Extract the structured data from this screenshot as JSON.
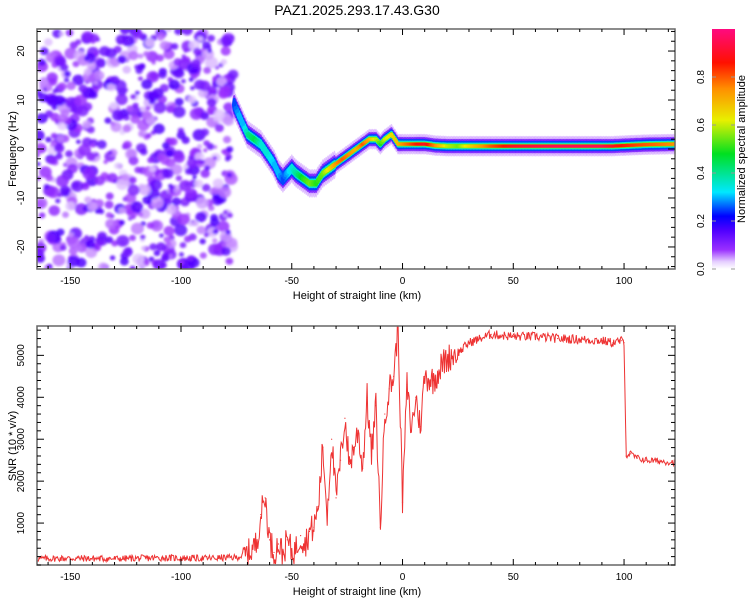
{
  "page_title": "PAZ1.2025.293.17.43.G30",
  "chart_data": [
    {
      "type": "heatmap",
      "title": "PAZ1.2025.293.17.43.G30",
      "xlabel": "Height of straight line (km)",
      "ylabel": "Frequency (Hz)",
      "xlim": [
        -165,
        123
      ],
      "ylim": [
        -24.5,
        24.5
      ],
      "xticks": [
        -150,
        -100,
        -50,
        0,
        50,
        100
      ],
      "yticks": [
        -20,
        -10,
        0,
        10,
        20
      ],
      "colorbar": {
        "label": "Normalized spectral amplitude",
        "range": [
          0,
          1
        ],
        "ticks": [
          "0.0",
          "0.2",
          "0.4",
          "0.6",
          "0.8"
        ],
        "colors": [
          "#ffffff",
          "#e6d0ff",
          "#8a00ff",
          "#0000ff",
          "#00e0ff",
          "#00e000",
          "#e0f000",
          "#ff9000",
          "#ff0000",
          "#ff0080"
        ]
      },
      "noise_region": {
        "x_from": -165,
        "x_to": -76,
        "amplitude": 0.15
      },
      "ridge": {
        "x": [
          -76,
          -74,
          -72,
          -70,
          -67,
          -64,
          -61,
          -58,
          -56,
          -54,
          -52,
          -50,
          -48,
          -45,
          -42,
          -39,
          -36,
          -33,
          -30,
          -27,
          -24,
          -21,
          -18,
          -15,
          -12,
          -10,
          -8,
          -5,
          -2,
          0,
          3,
          6,
          10,
          15,
          20,
          25,
          30,
          40,
          50,
          60,
          70,
          80,
          90,
          95,
          100,
          110,
          123
        ],
        "y": [
          9,
          7,
          5,
          3,
          2,
          1,
          -1,
          -3,
          -5,
          -6,
          -5,
          -4,
          -5,
          -6,
          -7,
          -7,
          -5,
          -4,
          -3,
          -2,
          -1,
          0,
          1,
          2,
          2,
          1,
          2,
          3,
          1,
          1,
          1,
          1,
          1,
          0.7,
          0.6,
          0.6,
          0.6,
          0.6,
          0.6,
          0.6,
          0.6,
          0.6,
          0.6,
          0.6,
          0.7,
          0.9,
          1
        ],
        "amplitude": [
          0.25,
          0.3,
          0.3,
          0.4,
          0.45,
          0.35,
          0.35,
          0.3,
          0.3,
          0.25,
          0.3,
          0.35,
          0.4,
          0.5,
          0.55,
          0.5,
          0.55,
          0.65,
          0.75,
          0.8,
          0.75,
          0.7,
          0.8,
          0.7,
          0.6,
          0.5,
          0.6,
          0.65,
          0.7,
          0.75,
          0.8,
          0.85,
          0.9,
          0.75,
          0.6,
          0.55,
          0.65,
          0.8,
          0.9,
          0.93,
          0.95,
          0.95,
          0.95,
          0.9,
          0.85,
          0.8,
          0.75
        ]
      }
    },
    {
      "type": "line",
      "title": "",
      "xlabel": "Height of straight line (km)",
      "ylabel": "SNR (10 * v/v)",
      "xlim": [
        -165,
        123
      ],
      "ylim": [
        0,
        5700
      ],
      "xticks": [
        -150,
        -100,
        -50,
        0,
        50,
        100
      ],
      "yticks": [
        1000,
        2000,
        3000,
        4000,
        5000
      ],
      "color": "#ee3333",
      "series": [
        {
          "name": "SNR",
          "x": [
            -165,
            -150,
            -130,
            -110,
            -90,
            -75,
            -70,
            -66,
            -64,
            -62,
            -60,
            -58,
            -56,
            -54,
            -52,
            -50,
            -48,
            -46,
            -44,
            -42,
            -40,
            -38,
            -36,
            -34,
            -32,
            -30,
            -28,
            -26,
            -24,
            -22,
            -20,
            -18,
            -16,
            -14,
            -12,
            -10,
            -8,
            -6,
            -4,
            -2,
            0,
            2,
            4,
            6,
            8,
            10,
            14,
            18,
            22,
            26,
            30,
            35,
            40,
            50,
            60,
            70,
            80,
            90,
            95,
            99,
            100,
            101,
            103,
            106,
            110,
            115,
            123
          ],
          "y": [
            150,
            160,
            150,
            170,
            160,
            180,
            250,
            500,
            1200,
            1600,
            600,
            300,
            500,
            250,
            600,
            300,
            400,
            700,
            500,
            800,
            900,
            1400,
            2800,
            1200,
            3000,
            1600,
            2500,
            3500,
            2400,
            2800,
            3200,
            2300,
            4000,
            2600,
            3800,
            900,
            3600,
            4200,
            4500,
            5700,
            1500,
            4300,
            3200,
            4000,
            3300,
            4500,
            4400,
            4800,
            5000,
            5100,
            5300,
            5400,
            5500,
            5450,
            5450,
            5400,
            5380,
            5350,
            5300,
            5350,
            5300,
            2600,
            2650,
            2550,
            2500,
            2480,
            2450
          ]
        }
      ]
    }
  ]
}
